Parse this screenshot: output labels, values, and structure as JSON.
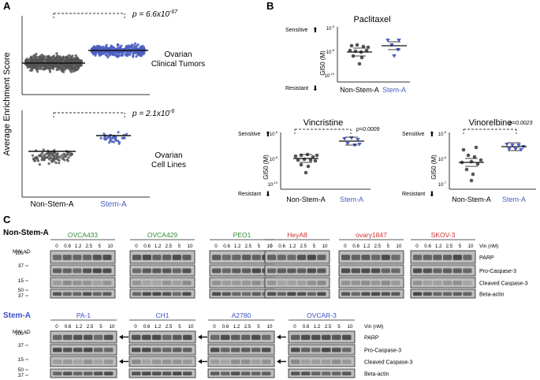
{
  "figure": {
    "panel_labels": [
      "A",
      "B",
      "C"
    ],
    "colors": {
      "non_stem": "#555555",
      "stem": "#4a5dc0",
      "green": "#2e8b3a",
      "red": "#d0312d",
      "blue": "#3b4fc4"
    }
  },
  "panel_a": {
    "ylabel": "Average Enrichment Score",
    "group_labels": [
      "Non-Stem-A",
      "Stem-A"
    ],
    "top": {
      "p_text": "p = 6.6x10",
      "p_exp": "-67",
      "name": [
        "Ovarian",
        "Clinical Tumors"
      ]
    },
    "bottom": {
      "p_text": "p = 2.1x10",
      "p_exp": "-6",
      "name": [
        "Ovarian",
        "Cell Lines"
      ]
    }
  },
  "panel_b": {
    "ylabel": "GI50 (M)",
    "sensitive": "Sensitive",
    "resistant": "Resistant",
    "group_labels": [
      "Non-Stem-A",
      "Stem-A"
    ],
    "paclitaxel": {
      "title": "Paclitaxel",
      "ticks": [
        "10",
        "10",
        "10"
      ],
      "tick_exps": [
        "-6",
        "-8",
        "-10"
      ]
    },
    "vincristine": {
      "title": "Vincristine",
      "p": "p=0.0009",
      "ticks": [
        "10",
        "10",
        "10"
      ],
      "tick_exps": [
        "-6",
        "-8",
        "-10"
      ]
    },
    "vinorelbine": {
      "title": "Vinorelbine",
      "p": "p=0.0023",
      "ticks": [
        "10",
        "10",
        "10"
      ],
      "tick_exps": [
        "-5",
        "-6",
        "-7"
      ]
    }
  },
  "panel_c": {
    "non_stem_title": "Non-Stem-A",
    "stem_title": "Stem-A",
    "mw_label": "MW, kD",
    "vin_label": "Vin (nM)",
    "doses": [
      "0",
      "0.6",
      "1.2",
      "2.5",
      "5",
      "10"
    ],
    "mw_rows": [
      "100",
      "37",
      "15",
      "50",
      "37"
    ],
    "row_labels": [
      "PARP",
      "Pro-Caspase-3",
      "Cleaved Caspase-3",
      "Beta-actin"
    ],
    "non_stem_lines": [
      {
        "name": "OVCA433",
        "color": "#2e8b3a"
      },
      {
        "name": "OVCA429",
        "color": "#2e8b3a"
      },
      {
        "name": "PEO1",
        "color": "#2e8b3a"
      },
      {
        "name": "HeyA8",
        "color": "#d0312d"
      },
      {
        "name": "ovary1847",
        "color": "#d0312d"
      },
      {
        "name": "SKOV-3",
        "color": "#d0312d"
      }
    ],
    "stem_lines": [
      {
        "name": "PA-1",
        "color": "#3b4fc4"
      },
      {
        "name": "CH1",
        "color": "#3b4fc4"
      },
      {
        "name": "A2780",
        "color": "#3b4fc4"
      },
      {
        "name": "OVCAR-3",
        "color": "#3b4fc4"
      }
    ]
  }
}
